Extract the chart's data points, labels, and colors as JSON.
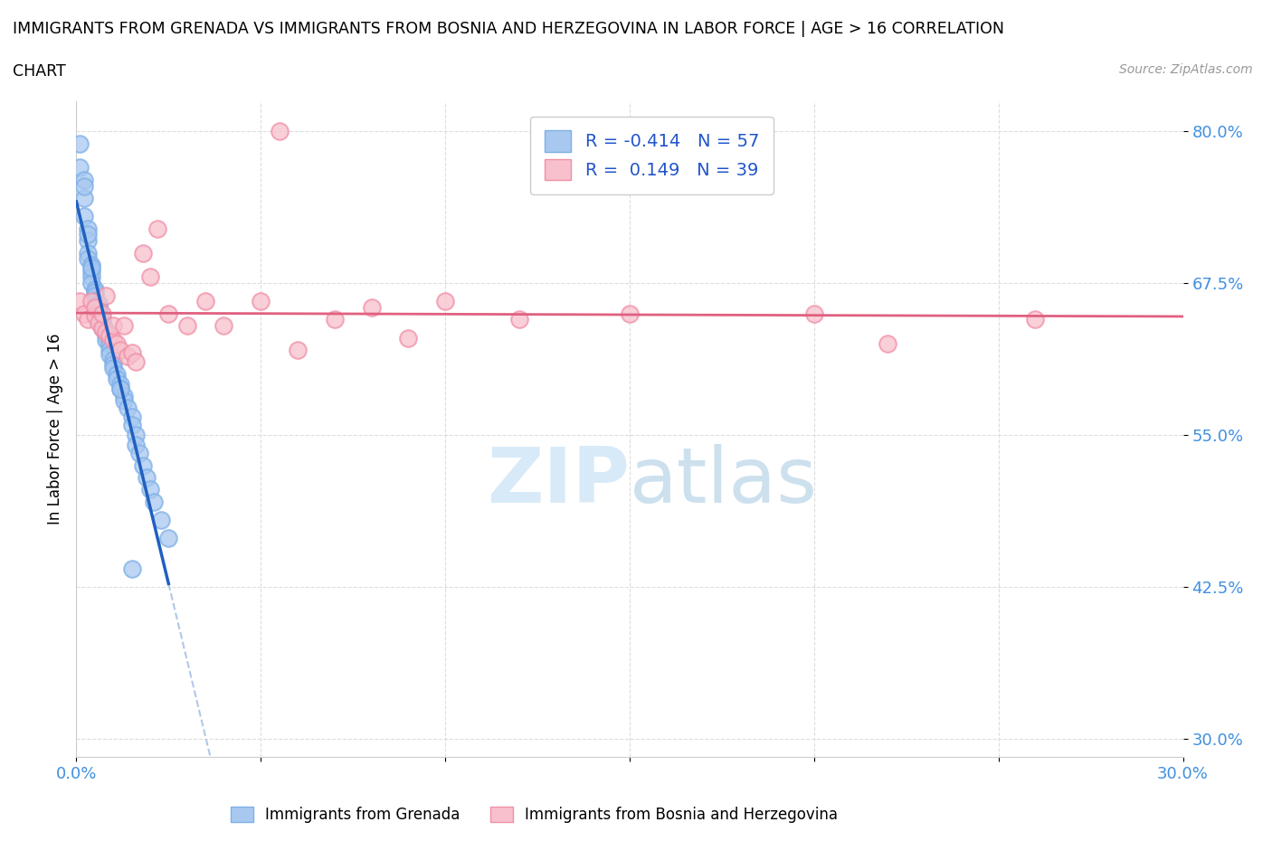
{
  "title_line1": "IMMIGRANTS FROM GRENADA VS IMMIGRANTS FROM BOSNIA AND HERZEGOVINA IN LABOR FORCE | AGE > 16 CORRELATION",
  "title_line2": "CHART",
  "source": "Source: ZipAtlas.com",
  "ylabel": "In Labor Force | Age > 16",
  "xlim": [
    0.0,
    0.3
  ],
  "ylim": [
    0.285,
    0.825
  ],
  "xtick_positions": [
    0.0,
    0.05,
    0.1,
    0.15,
    0.2,
    0.25,
    0.3
  ],
  "xticklabels": [
    "0.0%",
    "",
    "",
    "",
    "",
    "",
    "30.0%"
  ],
  "ytick_positions": [
    0.3,
    0.425,
    0.55,
    0.675,
    0.8
  ],
  "ytick_labels": [
    "30.0%",
    "42.5%",
    "55.0%",
    "67.5%",
    "80.0%"
  ],
  "grenada_R": -0.414,
  "grenada_N": 57,
  "bosnia_R": 0.149,
  "bosnia_N": 39,
  "grenada_color": "#a8c8f0",
  "grenada_edge_color": "#7eb0e8",
  "bosnia_color": "#f8c0cc",
  "bosnia_edge_color": "#f090a8",
  "grenada_line_color": "#2060c0",
  "bosnia_line_color": "#e06080",
  "dashed_line_color": "#b0c8e8",
  "watermark_color": "#d8eaf8",
  "tick_color": "#4090e0",
  "grenada_scatter_x": [
    0.001,
    0.001,
    0.002,
    0.002,
    0.002,
    0.003,
    0.003,
    0.003,
    0.003,
    0.004,
    0.004,
    0.004,
    0.004,
    0.005,
    0.005,
    0.005,
    0.005,
    0.006,
    0.006,
    0.006,
    0.006,
    0.007,
    0.007,
    0.007,
    0.008,
    0.008,
    0.008,
    0.009,
    0.009,
    0.009,
    0.01,
    0.01,
    0.01,
    0.011,
    0.011,
    0.012,
    0.012,
    0.013,
    0.013,
    0.014,
    0.015,
    0.015,
    0.016,
    0.016,
    0.017,
    0.018,
    0.019,
    0.02,
    0.021,
    0.023,
    0.002,
    0.003,
    0.004,
    0.006,
    0.012,
    0.025,
    0.015
  ],
  "grenada_scatter_y": [
    0.79,
    0.77,
    0.76,
    0.745,
    0.73,
    0.72,
    0.71,
    0.7,
    0.695,
    0.69,
    0.685,
    0.68,
    0.675,
    0.67,
    0.668,
    0.665,
    0.66,
    0.658,
    0.655,
    0.652,
    0.648,
    0.645,
    0.642,
    0.638,
    0.636,
    0.632,
    0.628,
    0.625,
    0.62,
    0.616,
    0.612,
    0.608,
    0.605,
    0.6,
    0.596,
    0.592,
    0.588,
    0.582,
    0.578,
    0.572,
    0.565,
    0.558,
    0.55,
    0.542,
    0.535,
    0.525,
    0.515,
    0.505,
    0.495,
    0.48,
    0.755,
    0.715,
    0.688,
    0.658,
    0.588,
    0.465,
    0.44
  ],
  "bosnia_scatter_x": [
    0.001,
    0.002,
    0.003,
    0.004,
    0.005,
    0.005,
    0.006,
    0.007,
    0.007,
    0.008,
    0.008,
    0.009,
    0.01,
    0.01,
    0.011,
    0.012,
    0.013,
    0.014,
    0.015,
    0.016,
    0.018,
    0.02,
    0.022,
    0.025,
    0.03,
    0.035,
    0.04,
    0.05,
    0.055,
    0.06,
    0.07,
    0.08,
    0.09,
    0.1,
    0.12,
    0.15,
    0.2,
    0.22,
    0.26
  ],
  "bosnia_scatter_y": [
    0.66,
    0.65,
    0.645,
    0.66,
    0.648,
    0.655,
    0.642,
    0.638,
    0.65,
    0.635,
    0.665,
    0.632,
    0.628,
    0.64,
    0.625,
    0.62,
    0.64,
    0.615,
    0.618,
    0.61,
    0.7,
    0.68,
    0.72,
    0.65,
    0.64,
    0.66,
    0.64,
    0.66,
    0.8,
    0.62,
    0.645,
    0.655,
    0.63,
    0.66,
    0.645,
    0.65,
    0.65,
    0.625,
    0.645
  ]
}
